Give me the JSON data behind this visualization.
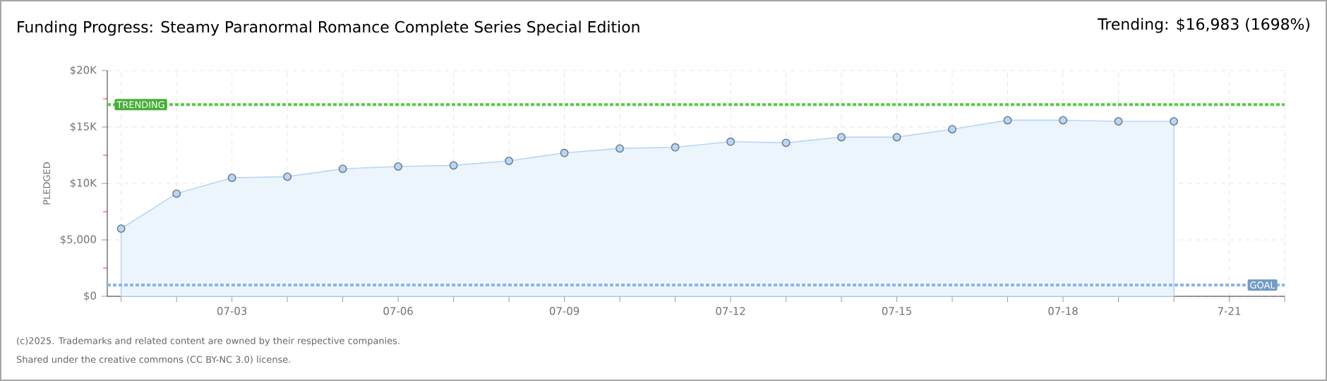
{
  "chart_data": {
    "type": "area",
    "title": "Funding Progress: Steamy Paranormal Romance Complete Series Special Edition",
    "subtitle": "Trending: $16,983 (1698%)",
    "ylabel": "PLEDGED",
    "categories": [
      null,
      null,
      "07-03",
      null,
      null,
      "07-06",
      null,
      null,
      "07-09",
      null,
      null,
      "07-12",
      null,
      null,
      "07-15",
      null,
      null,
      "07-18",
      null,
      null,
      "7-21",
      null
    ],
    "series": [
      {
        "color": "#b9d6f5",
        "values": [
          6000,
          9100,
          10500,
          10600,
          11300,
          11500,
          11600,
          12000,
          12700,
          13100,
          13200,
          13700,
          13600,
          14100,
          14100,
          14800,
          15600,
          15600,
          15500,
          15500,
          null,
          null
        ]
      }
    ],
    "ylim": [
      0,
      20000
    ],
    "yticks": [
      {
        "value": 0,
        "label": "$0"
      },
      {
        "value": 2500,
        "label": null
      },
      {
        "value": 5000,
        "label": "$5,000"
      },
      {
        "value": 7500,
        "label": null
      },
      {
        "value": 10000,
        "label": "$10K"
      },
      {
        "value": 12500,
        "label": null
      },
      {
        "value": 15000,
        "label": "$15K"
      },
      {
        "value": 17500,
        "label": null
      },
      {
        "value": 20000,
        "label": "$20K"
      }
    ],
    "grid": true,
    "marker": "circle",
    "ref_lines": [
      {
        "axis": "y",
        "value": 16983,
        "label": "TRENDING",
        "color": "#55cc44",
        "line_style": "dotted"
      },
      {
        "axis": "y",
        "value": 1000,
        "label": "GOAL",
        "color": "#8ab6e8",
        "line_style": "dotted"
      }
    ],
    "annotations": [
      "(c)2025. Trademarks and related content are owned by their respective companies.",
      "Shared under the creative commons (CC BY-NC 3.0) license."
    ]
  }
}
